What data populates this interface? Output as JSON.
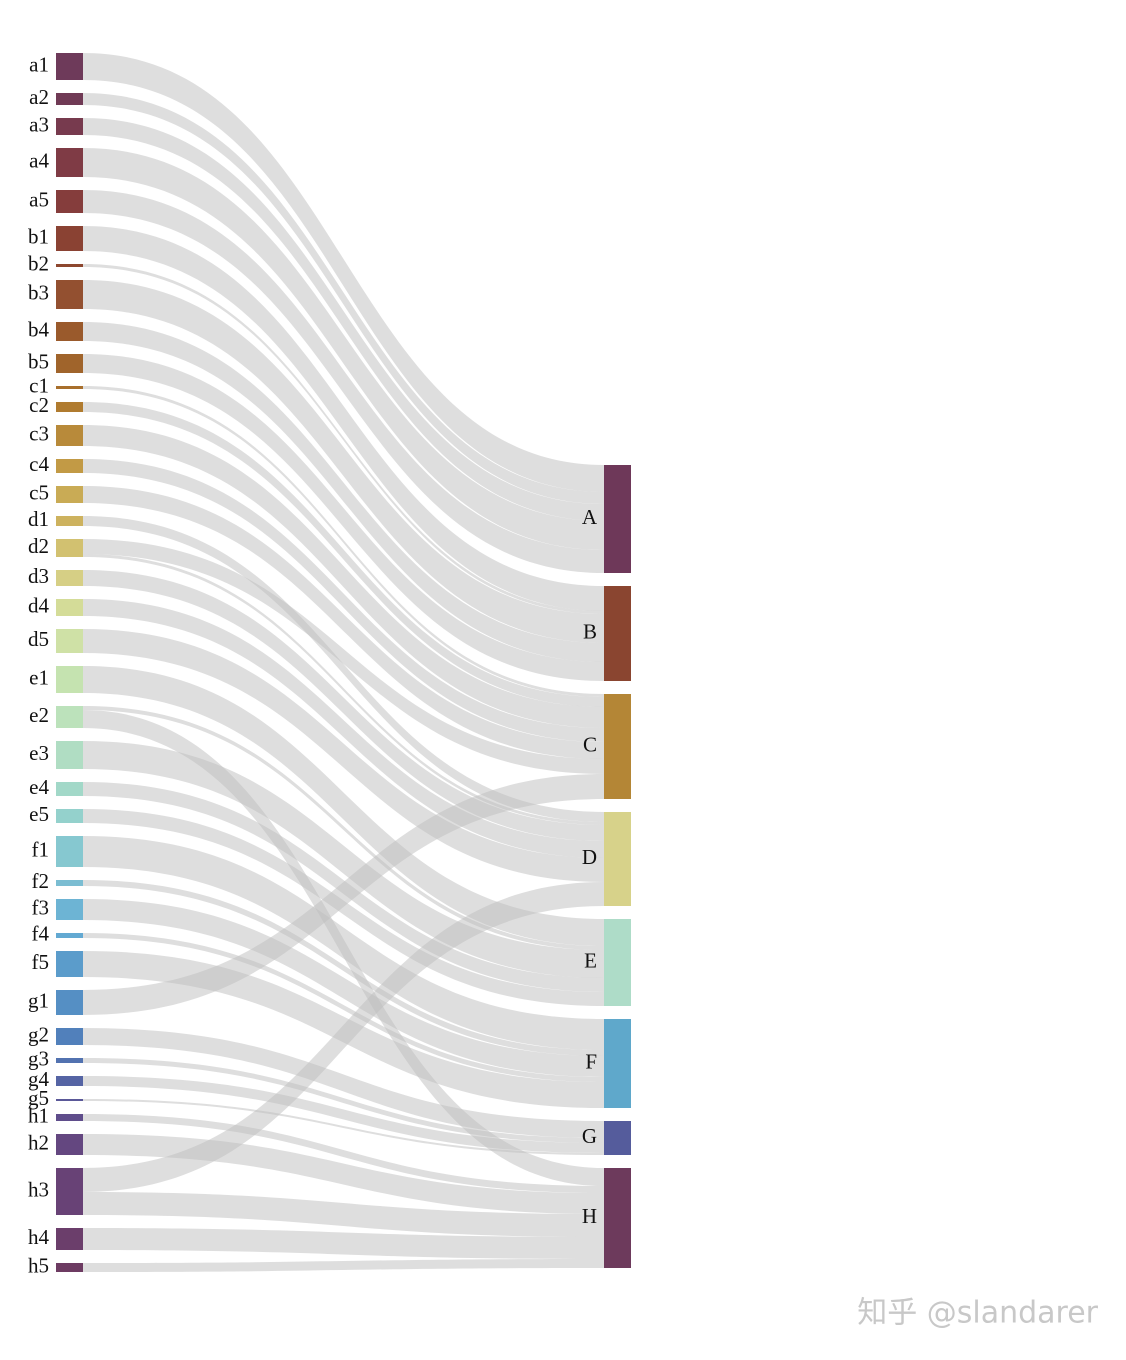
{
  "chart_data": {
    "type": "sankey",
    "nodes": [
      {
        "name": "a1",
        "color": "#6e3a5a"
      },
      {
        "name": "a2",
        "color": "#703a55"
      },
      {
        "name": "a3",
        "color": "#773a4e"
      },
      {
        "name": "a4",
        "color": "#7f3b45"
      },
      {
        "name": "a5",
        "color": "#853d3c"
      },
      {
        "name": "b1",
        "color": "#8a4233"
      },
      {
        "name": "b2",
        "color": "#8d472f"
      },
      {
        "name": "b3",
        "color": "#935030"
      },
      {
        "name": "b4",
        "color": "#9a5a2c"
      },
      {
        "name": "b5",
        "color": "#a0642b"
      },
      {
        "name": "c1",
        "color": "#a86f2c"
      },
      {
        "name": "c2",
        "color": "#b07b2f"
      },
      {
        "name": "c3",
        "color": "#b88a3a"
      },
      {
        "name": "c4",
        "color": "#c29a45"
      },
      {
        "name": "c5",
        "color": "#c9ab55"
      },
      {
        "name": "d1",
        "color": "#cdb25e"
      },
      {
        "name": "d2",
        "color": "#d2c170"
      },
      {
        "name": "d3",
        "color": "#d6cf85"
      },
      {
        "name": "d4",
        "color": "#d4dc98"
      },
      {
        "name": "d5",
        "color": "#cfe1a6"
      },
      {
        "name": "e1",
        "color": "#c5e3b0"
      },
      {
        "name": "e2",
        "color": "#bce2bb"
      },
      {
        "name": "e3",
        "color": "#b0ddc3"
      },
      {
        "name": "e4",
        "color": "#a2d8c8"
      },
      {
        "name": "e5",
        "color": "#94d1cc"
      },
      {
        "name": "f1",
        "color": "#86c8d0"
      },
      {
        "name": "f2",
        "color": "#7bbdd2"
      },
      {
        "name": "f3",
        "color": "#6db4d4"
      },
      {
        "name": "f4",
        "color": "#63a9d2"
      },
      {
        "name": "f5",
        "color": "#5b9ccb"
      },
      {
        "name": "g1",
        "color": "#558fc4"
      },
      {
        "name": "g2",
        "color": "#5180bb"
      },
      {
        "name": "g3",
        "color": "#5272b0"
      },
      {
        "name": "g4",
        "color": "#5564a4"
      },
      {
        "name": "g5",
        "color": "#5a5898"
      },
      {
        "name": "h1",
        "color": "#5f4d8b"
      },
      {
        "name": "h2",
        "color": "#644780"
      },
      {
        "name": "h3",
        "color": "#684276"
      },
      {
        "name": "h4",
        "color": "#6b3e6b"
      },
      {
        "name": "h5",
        "color": "#6d3b62"
      },
      {
        "name": "A",
        "color": "#6e3859"
      },
      {
        "name": "B",
        "color": "#8a4530"
      },
      {
        "name": "C",
        "color": "#b48636"
      },
      {
        "name": "D",
        "color": "#d7d28a"
      },
      {
        "name": "E",
        "color": "#aedcc8"
      },
      {
        "name": "F",
        "color": "#5fa8cb"
      },
      {
        "name": "G",
        "color": "#555c9c"
      },
      {
        "name": "H",
        "color": "#6d3a5c"
      }
    ],
    "links": [
      {
        "source": "a1",
        "target": "A",
        "value": 27
      },
      {
        "source": "a2",
        "target": "A",
        "value": 12
      },
      {
        "source": "a3",
        "target": "A",
        "value": 17
      },
      {
        "source": "a4",
        "target": "A",
        "value": 29
      },
      {
        "source": "a5",
        "target": "A",
        "value": 23
      },
      {
        "source": "b1",
        "target": "B",
        "value": 25
      },
      {
        "source": "b2",
        "target": "B",
        "value": 3
      },
      {
        "source": "b3",
        "target": "B",
        "value": 29
      },
      {
        "source": "b4",
        "target": "B",
        "value": 19
      },
      {
        "source": "b5",
        "target": "B",
        "value": 19
      },
      {
        "source": "c1",
        "target": "C",
        "value": 3
      },
      {
        "source": "c2",
        "target": "C",
        "value": 10
      },
      {
        "source": "c3",
        "target": "C",
        "value": 21
      },
      {
        "source": "c4",
        "target": "C",
        "value": 14
      },
      {
        "source": "c5",
        "target": "C",
        "value": 17
      },
      {
        "source": "d1",
        "target": "D",
        "value": 10
      },
      {
        "source": "d2",
        "target": "C",
        "value": 15
      },
      {
        "source": "d2",
        "target": "D",
        "value": 3
      },
      {
        "source": "d3",
        "target": "D",
        "value": 16
      },
      {
        "source": "d4",
        "target": "D",
        "value": 17
      },
      {
        "source": "d5",
        "target": "D",
        "value": 24
      },
      {
        "source": "e1",
        "target": "E",
        "value": 27
      },
      {
        "source": "e2",
        "target": "E",
        "value": 4
      },
      {
        "source": "e2",
        "target": "H",
        "value": 18
      },
      {
        "source": "e3",
        "target": "E",
        "value": 28
      },
      {
        "source": "e4",
        "target": "E",
        "value": 14
      },
      {
        "source": "e5",
        "target": "E",
        "value": 14
      },
      {
        "source": "f1",
        "target": "F",
        "value": 31
      },
      {
        "source": "f2",
        "target": "F",
        "value": 6
      },
      {
        "source": "f3",
        "target": "F",
        "value": 21
      },
      {
        "source": "f4",
        "target": "F",
        "value": 5
      },
      {
        "source": "f5",
        "target": "F",
        "value": 26
      },
      {
        "source": "g1",
        "target": "C",
        "value": 25
      },
      {
        "source": "g2",
        "target": "G",
        "value": 17
      },
      {
        "source": "g3",
        "target": "G",
        "value": 5
      },
      {
        "source": "g4",
        "target": "G",
        "value": 10
      },
      {
        "source": "g5",
        "target": "G",
        "value": 2
      },
      {
        "source": "h1",
        "target": "H",
        "value": 7
      },
      {
        "source": "h2",
        "target": "H",
        "value": 21
      },
      {
        "source": "h3",
        "target": "D",
        "value": 24
      },
      {
        "source": "h3",
        "target": "H",
        "value": 23
      },
      {
        "source": "h4",
        "target": "H",
        "value": 22
      },
      {
        "source": "h5",
        "target": "H",
        "value": 9
      }
    ],
    "watermark": "知乎 @slandarer"
  }
}
